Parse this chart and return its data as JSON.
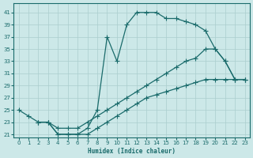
{
  "xlabel": "Humidex (Indice chaleur)",
  "background_color": "#cce8e8",
  "grid_color": "#aacece",
  "line_color": "#1a6b6b",
  "xlim": [
    -0.5,
    23.5
  ],
  "ylim": [
    20.5,
    42.5
  ],
  "xticks": [
    0,
    1,
    2,
    3,
    4,
    5,
    6,
    7,
    8,
    9,
    10,
    11,
    12,
    13,
    14,
    15,
    16,
    17,
    18,
    19,
    20,
    21,
    22,
    23
  ],
  "yticks": [
    21,
    23,
    25,
    27,
    29,
    31,
    33,
    35,
    37,
    39,
    41
  ],
  "line_upper_x": [
    2,
    3,
    4,
    5,
    6,
    7,
    8,
    9,
    10,
    11,
    12,
    13,
    14,
    15,
    16,
    17,
    18,
    19,
    20,
    21,
    22,
    23
  ],
  "line_upper_y": [
    23,
    23,
    21,
    21,
    21,
    22,
    25,
    37,
    33,
    39,
    41,
    41,
    41,
    40,
    40,
    39.5,
    39,
    38,
    35,
    33,
    30,
    30
  ],
  "line_middle_x": [
    0,
    1,
    2,
    3,
    4,
    5,
    6,
    7,
    8,
    9,
    10,
    11,
    12,
    13,
    14,
    15,
    16,
    17,
    18,
    19,
    20,
    21,
    22,
    23
  ],
  "line_middle_y": [
    25,
    24,
    23,
    23,
    22,
    22,
    22,
    23,
    24,
    25,
    26,
    27,
    28,
    29,
    30,
    31,
    32,
    33,
    33.5,
    35,
    35,
    33,
    30,
    30
  ],
  "line_lower_x": [
    2,
    3,
    4,
    5,
    6,
    7,
    8,
    9,
    10,
    11,
    12,
    13,
    14,
    15,
    16,
    17,
    18,
    19,
    20,
    21,
    22,
    23
  ],
  "line_lower_y": [
    23,
    23,
    21,
    21,
    21,
    21,
    22,
    23,
    24,
    25,
    26,
    27,
    27.5,
    28,
    28.5,
    29,
    29.5,
    30,
    30,
    30,
    30,
    30
  ]
}
